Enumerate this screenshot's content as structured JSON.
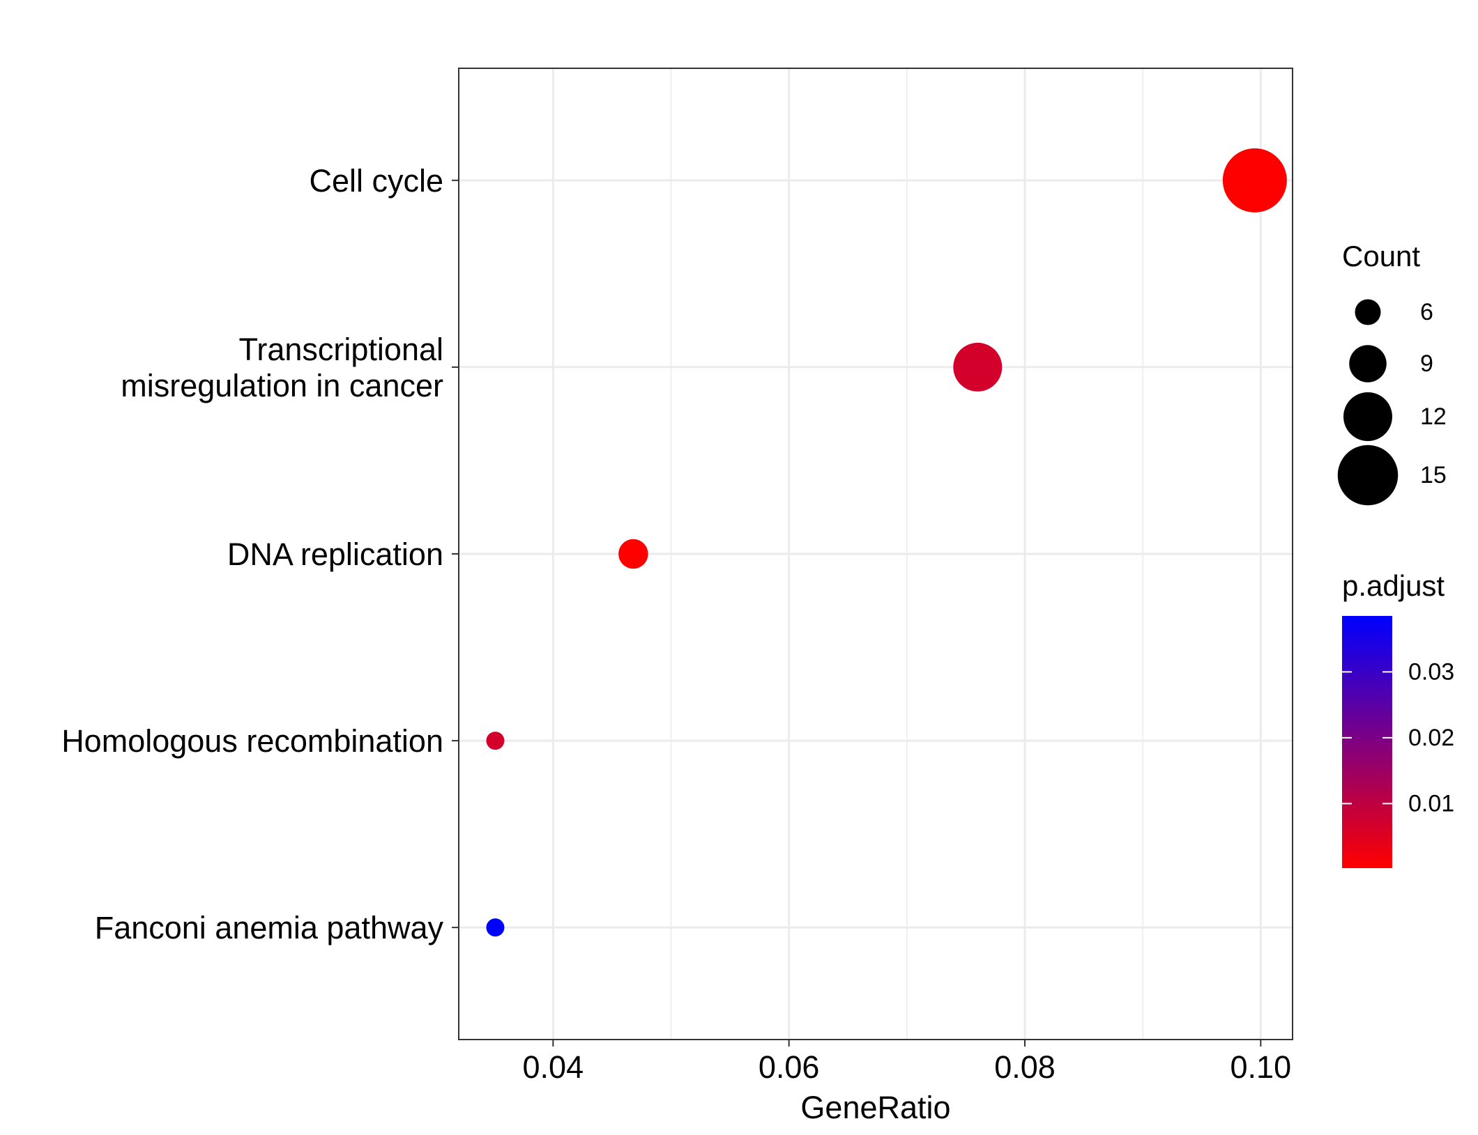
{
  "chart_data": {
    "type": "scatter",
    "title": "",
    "xlabel": "GeneRatio",
    "ylabel": "",
    "xlim": [
      0.032,
      0.1027
    ],
    "xticks": [
      0.04,
      0.06,
      0.08,
      0.1
    ],
    "xtick_labels": [
      "0.04",
      "0.06",
      "0.08",
      "0.10"
    ],
    "grid": true,
    "categories": [
      "Cell cycle",
      "Transcriptional\nmisregulation in cancer",
      "DNA replication",
      "Homologous recombination",
      "Fanconi anemia pathway"
    ],
    "points": [
      {
        "term": "Cell cycle",
        "x": 0.0995,
        "count": 16,
        "p_adjust": 0.0002
      },
      {
        "term": "Transcriptional\nmisregulation in cancer",
        "x": 0.076,
        "count": 12,
        "p_adjust": 0.0068
      },
      {
        "term": "DNA replication",
        "x": 0.0468,
        "count": 7,
        "p_adjust": 0.0002
      },
      {
        "term": "Homologous recombination",
        "x": 0.0351,
        "count": 4,
        "p_adjust": 0.0068
      },
      {
        "term": "Fanconi anemia pathway",
        "x": 0.0351,
        "count": 4,
        "p_adjust": 0.0385
      }
    ],
    "size_legend": {
      "title": "Count",
      "values": [
        6,
        9,
        12,
        15
      ],
      "labels": [
        "6",
        "9",
        "12",
        "15"
      ]
    },
    "color_legend": {
      "title": "p.adjust",
      "range": [
        0.0002,
        0.0385
      ],
      "ticks": [
        0.01,
        0.02,
        0.03
      ],
      "tick_labels": [
        "0.01",
        "0.02",
        "0.03"
      ],
      "low_color": "#ff0000",
      "high_color": "#0000ff"
    },
    "legend_position": "right"
  },
  "colors": {
    "grid": "#ebebeb",
    "panel_border": "#333333",
    "point_low": "#ff0000",
    "point_high": "#0000ff"
  }
}
